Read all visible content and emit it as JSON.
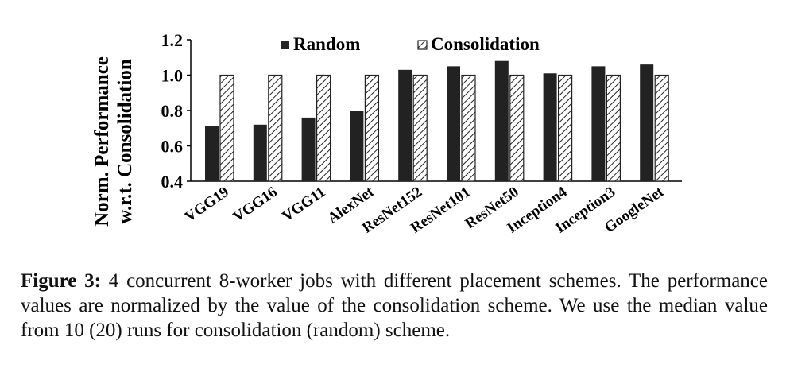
{
  "chart_data": {
    "type": "bar",
    "ylabel_line1": "Norm. Performance",
    "ylabel_line2": "w.r.t. Consolidation",
    "ylim": [
      0.4,
      1.2
    ],
    "yticks": [
      "0.4",
      "0.6",
      "0.8",
      "1.0",
      "1.2"
    ],
    "categories": [
      "VGG19",
      "VGG16",
      "VGG11",
      "AlexNet",
      "ResNet152",
      "ResNet101",
      "ResNet50",
      "Inception4",
      "Inception3",
      "GoogleNet"
    ],
    "series": [
      {
        "name": "Random",
        "values": [
          0.71,
          0.72,
          0.76,
          0.8,
          1.03,
          1.05,
          1.08,
          1.01,
          1.05,
          1.06
        ]
      },
      {
        "name": "Consolidation",
        "values": [
          1.0,
          1.0,
          1.0,
          1.0,
          1.0,
          1.0,
          1.0,
          1.0,
          1.0,
          1.0
        ]
      }
    ],
    "legend_position": "top"
  },
  "caption": {
    "label": "Figure 3:",
    "text": "4 concurrent 8-worker jobs with different placement schemes. The performance values are normalized by the value of the consolidation scheme. We use the median value from 10 (20) runs for consolidation (random) scheme."
  },
  "colors": {
    "random": "#222222",
    "consolidation_hatch": "#222222",
    "axis": "#000000"
  }
}
